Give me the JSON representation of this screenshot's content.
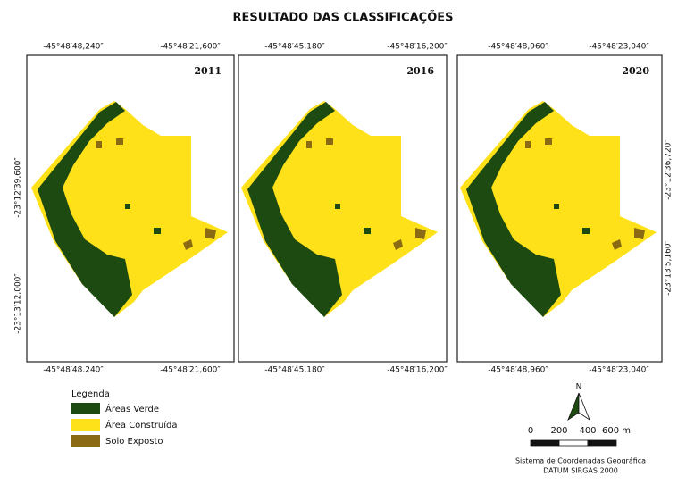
{
  "title": "RESULTADO DAS CLASSIFICAÇÕES",
  "panels": [
    {
      "year": "2011",
      "top_labels": [
        "-45°48′48,240″",
        "-45°48′21,600″"
      ],
      "bottom_labels": [
        "-45°48′48.240″",
        "-45°48′21,600″"
      ],
      "side_labels": [
        "-23°12′39,600″",
        "-23°13′12,000″"
      ]
    },
    {
      "year": "2016",
      "top_labels": [
        "-45°48′45,180″",
        "-45°48′16,200″"
      ],
      "bottom_labels": [
        "-45°48′45,180″",
        "-45°48′16,200″"
      ],
      "side_labels": []
    },
    {
      "year": "2020",
      "top_labels": [
        "-45°48′48,960″",
        "-45°48′23,040″"
      ],
      "bottom_labels": [
        "-45°48′48,960″",
        "-45°48′23,040″"
      ],
      "side_labels": [
        "-23°12′36,720″",
        "-23°13′5,160″"
      ]
    }
  ],
  "legend": {
    "title": "Legenda",
    "items": [
      {
        "label": "Áreas Verde",
        "color": "#1d4a10"
      },
      {
        "label": "Área Construída",
        "color": "#ffe11a"
      },
      {
        "label": "Solo Exposto",
        "color": "#8a6a12"
      }
    ]
  },
  "north": "N",
  "scale_labels": [
    "0",
    "200",
    "400",
    "600 m"
  ],
  "credits": [
    "Sistema de Coordenadas Geográfica",
    "DATUM SIRGAS 2000"
  ]
}
